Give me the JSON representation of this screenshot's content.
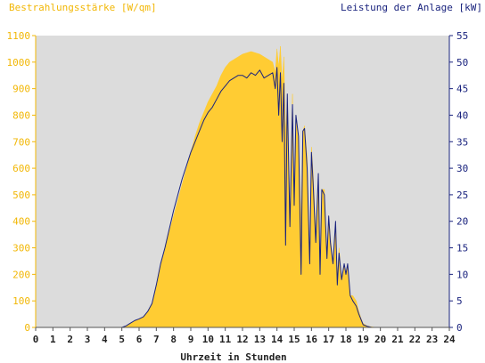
{
  "chart_data": {
    "type": "area",
    "ylabel_left": "Bestrahlungsstärke [W/qm]",
    "ylabel_right": "Leistung der Anlage [kW]",
    "xlabel": "Uhrzeit in Stunden",
    "xlim": [
      0,
      24
    ],
    "ylim_left": [
      0,
      1100
    ],
    "ylim_right": [
      0,
      55
    ],
    "x_ticks": [
      "0",
      "1",
      "2",
      "3",
      "4",
      "5",
      "6",
      "7",
      "8",
      "9",
      "10",
      "11",
      "12",
      "13",
      "14",
      "15",
      "16",
      "17",
      "18",
      "19",
      "20",
      "21",
      "22",
      "23",
      "24"
    ],
    "y_ticks_left": [
      "0",
      "100",
      "200",
      "300",
      "400",
      "500",
      "600",
      "700",
      "800",
      "900",
      "1000",
      "1100"
    ],
    "y_ticks_right": [
      "0",
      "5",
      "10",
      "15",
      "20",
      "25",
      "30",
      "35",
      "40",
      "45",
      "50",
      "55"
    ],
    "grid": false,
    "colors": {
      "irradiance_fill": "#ffcc33",
      "power_line": "#1a237e",
      "plot_background": "#dcdcdc",
      "left_axis_text": "#f2b705",
      "right_axis_text": "#1a237e"
    },
    "series": [
      {
        "axis": "left",
        "style": "area",
        "x": [
          0,
          5.0,
          5.25,
          5.5,
          5.75,
          6.0,
          6.25,
          6.5,
          6.75,
          7.0,
          7.25,
          7.5,
          7.75,
          8.0,
          8.25,
          8.5,
          8.75,
          9.0,
          9.25,
          9.5,
          9.75,
          10.0,
          10.25,
          10.5,
          10.75,
          11.0,
          11.25,
          11.5,
          11.75,
          12.0,
          12.25,
          12.5,
          12.75,
          13.0,
          13.25,
          13.5,
          13.75,
          13.9,
          14.0,
          14.1,
          14.2,
          14.3,
          14.4,
          14.5,
          14.6,
          14.75,
          14.9,
          15.0,
          15.1,
          15.25,
          15.4,
          15.5,
          15.6,
          15.75,
          15.9,
          16.0,
          16.1,
          16.25,
          16.4,
          16.5,
          16.6,
          16.75,
          16.9,
          17.0,
          17.1,
          17.25,
          17.4,
          17.5,
          17.6,
          17.75,
          17.9,
          18.0,
          18.1,
          18.25,
          18.4,
          18.5,
          18.6,
          18.75,
          18.9,
          19.0,
          19.25,
          19.5,
          19.75,
          20.0,
          24
        ],
        "values": [
          0,
          0,
          5,
          15,
          25,
          30,
          40,
          60,
          90,
          160,
          230,
          300,
          360,
          420,
          480,
          540,
          600,
          660,
          720,
          770,
          810,
          850,
          880,
          910,
          950,
          980,
          1000,
          1010,
          1020,
          1030,
          1035,
          1040,
          1035,
          1030,
          1020,
          1010,
          1000,
          960,
          1050,
          980,
          1060,
          920,
          1020,
          720,
          860,
          400,
          880,
          360,
          780,
          700,
          400,
          740,
          760,
          640,
          240,
          680,
          580,
          360,
          560,
          200,
          520,
          520,
          260,
          420,
          340,
          240,
          380,
          180,
          300,
          180,
          240,
          200,
          240,
          120,
          120,
          110,
          100,
          60,
          30,
          15,
          5,
          2,
          0,
          0,
          0
        ]
      },
      {
        "axis": "right",
        "style": "line",
        "x": [
          0,
          5.0,
          5.25,
          5.5,
          5.75,
          6.0,
          6.25,
          6.5,
          6.75,
          7.0,
          7.25,
          7.5,
          7.75,
          8.0,
          8.25,
          8.5,
          8.75,
          9.0,
          9.25,
          9.5,
          9.75,
          10.0,
          10.25,
          10.5,
          10.75,
          11.0,
          11.25,
          11.5,
          11.75,
          12.0,
          12.25,
          12.5,
          12.75,
          13.0,
          13.25,
          13.5,
          13.75,
          13.9,
          14.0,
          14.1,
          14.2,
          14.3,
          14.4,
          14.5,
          14.6,
          14.75,
          14.9,
          15.0,
          15.1,
          15.25,
          15.4,
          15.5,
          15.6,
          15.75,
          15.9,
          16.0,
          16.1,
          16.25,
          16.4,
          16.5,
          16.6,
          16.75,
          16.9,
          17.0,
          17.1,
          17.25,
          17.4,
          17.5,
          17.6,
          17.75,
          17.9,
          18.0,
          18.1,
          18.25,
          18.4,
          18.5,
          18.6,
          18.75,
          18.9,
          19.0,
          19.25,
          19.5,
          19.75,
          20.0,
          24
        ],
        "values": [
          0,
          0,
          0.3,
          0.8,
          1.3,
          1.6,
          2.0,
          3.0,
          4.5,
          8.0,
          12.0,
          15.0,
          18.5,
          22.0,
          25.0,
          28.0,
          30.5,
          33.0,
          35.0,
          37.0,
          39.0,
          40.5,
          41.5,
          43.0,
          44.5,
          45.5,
          46.5,
          47.0,
          47.5,
          47.5,
          47.0,
          48.0,
          47.5,
          48.5,
          47.0,
          47.5,
          48.0,
          45.0,
          49.0,
          40.0,
          48.0,
          35.0,
          46.0,
          15.5,
          44.0,
          19.0,
          42.0,
          23.0,
          40.0,
          36.0,
          10.0,
          37.0,
          37.5,
          30.0,
          12.0,
          33.0,
          27.0,
          16.0,
          29.0,
          10.0,
          26.0,
          25.0,
          13.0,
          21.0,
          16.0,
          12.0,
          20.0,
          8.0,
          14.0,
          9.0,
          12.0,
          10.0,
          12.0,
          6.0,
          5.0,
          4.5,
          4.0,
          2.5,
          1.3,
          0.5,
          0.2,
          0,
          0,
          0,
          0
        ]
      }
    ]
  }
}
